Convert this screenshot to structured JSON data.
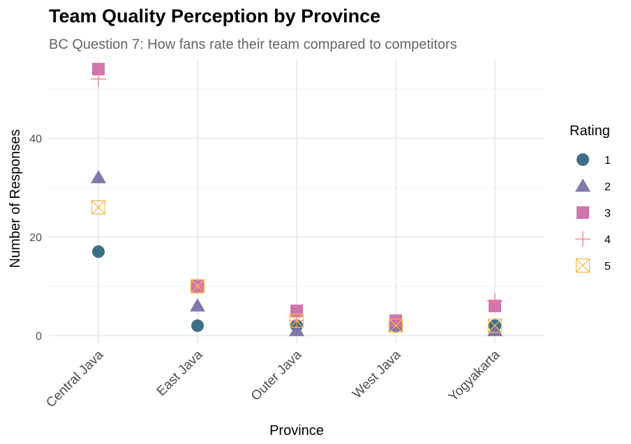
{
  "chart_data": {
    "type": "scatter",
    "title": "Team Quality Perception by Province",
    "subtitle": "BC Question 7: How fans rate their team compared to competitors",
    "xlabel": "Province",
    "ylabel": "Number of Responses",
    "categories": [
      "Central Java",
      "East Java",
      "Outer Java",
      "West Java",
      "Yogyakarta"
    ],
    "ylim": [
      -1.5,
      56
    ],
    "yticks": [
      0,
      20,
      40
    ],
    "legend_title": "Rating",
    "legend_position": "right",
    "series": [
      {
        "name": "1",
        "shape": "circle",
        "color": "#33677f",
        "values": [
          17,
          2,
          2,
          2,
          2
        ]
      },
      {
        "name": "2",
        "shape": "triangle",
        "color": "#7b72a8",
        "values": [
          32,
          6,
          1,
          2,
          1
        ]
      },
      {
        "name": "3",
        "shape": "square",
        "color": "#cc6fa8",
        "values": [
          54,
          10,
          5,
          3,
          6
        ]
      },
      {
        "name": "4",
        "shape": "plus",
        "color": "#ef7f8a",
        "values": [
          52,
          10,
          3,
          2,
          7
        ]
      },
      {
        "name": "5",
        "shape": "boxcross",
        "color": "#f8b84a",
        "values": [
          26,
          10,
          3,
          2,
          2
        ]
      }
    ]
  }
}
